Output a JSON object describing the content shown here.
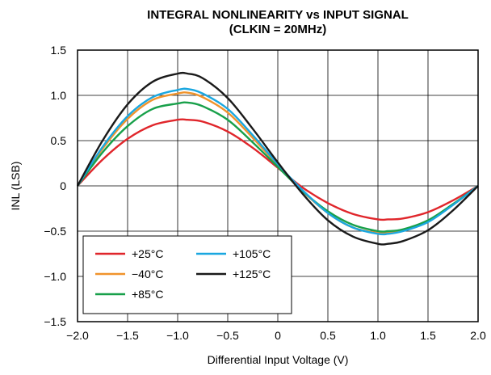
{
  "chart_data": {
    "type": "line",
    "title": "INTEGRAL NONLINEARITY vs INPUT SIGNAL",
    "subtitle": "(CLKIN = 20MHz)",
    "xlabel": "Differential Input Voltage (V)",
    "ylabel": "INL (LSB)",
    "xlim": [
      -2.0,
      2.0
    ],
    "ylim": [
      -1.5,
      1.5
    ],
    "x_ticks": [
      -2.0,
      -1.5,
      -1.0,
      -0.5,
      0,
      0.5,
      1.0,
      1.5,
      2.0
    ],
    "x_tick_labels": [
      "−2.0",
      "−1.5",
      "−1.0",
      "−0.5",
      "0",
      "0.5",
      "1.0",
      "1.5",
      "2.0"
    ],
    "y_ticks": [
      -1.5,
      -1.0,
      -0.5,
      0,
      0.5,
      1.0,
      1.5
    ],
    "y_tick_labels": [
      "−1.5",
      "−1.0",
      "−0.5",
      "0",
      "0.5",
      "1.0",
      "1.5"
    ],
    "grid": true,
    "legend_position": "bottom-left",
    "x": [
      -2.0,
      -1.75,
      -1.5,
      -1.25,
      -1.0,
      -0.9,
      -0.75,
      -0.5,
      -0.25,
      0.0,
      0.25,
      0.5,
      0.75,
      1.0,
      1.1,
      1.25,
      1.5,
      1.75,
      2.0
    ],
    "series": [
      {
        "name": "+25°C",
        "color": "#e0262b",
        "values": [
          0.0,
          0.29,
          0.52,
          0.67,
          0.73,
          0.73,
          0.71,
          0.6,
          0.42,
          0.2,
          -0.02,
          -0.19,
          -0.31,
          -0.37,
          -0.37,
          -0.36,
          -0.29,
          -0.16,
          0.0
        ]
      },
      {
        "name": "−40°C",
        "color": "#f0932b",
        "values": [
          0.0,
          0.41,
          0.74,
          0.95,
          1.02,
          1.03,
          0.98,
          0.81,
          0.53,
          0.23,
          -0.06,
          -0.3,
          -0.46,
          -0.52,
          -0.52,
          -0.49,
          -0.39,
          -0.21,
          0.0
        ]
      },
      {
        "name": "+85°C",
        "color": "#18a04a",
        "values": [
          0.0,
          0.37,
          0.66,
          0.85,
          0.91,
          0.92,
          0.88,
          0.73,
          0.48,
          0.21,
          -0.06,
          -0.28,
          -0.43,
          -0.5,
          -0.5,
          -0.48,
          -0.38,
          -0.2,
          0.0
        ]
      },
      {
        "name": "+105°C",
        "color": "#1aa7e0",
        "values": [
          0.0,
          0.43,
          0.77,
          0.98,
          1.06,
          1.07,
          1.02,
          0.85,
          0.56,
          0.24,
          -0.05,
          -0.3,
          -0.46,
          -0.53,
          -0.53,
          -0.5,
          -0.4,
          -0.21,
          0.0
        ]
      },
      {
        "name": "+125°C",
        "color": "#1a1a1a",
        "values": [
          0.0,
          0.5,
          0.9,
          1.15,
          1.24,
          1.24,
          1.19,
          0.97,
          0.63,
          0.26,
          -0.09,
          -0.38,
          -0.56,
          -0.64,
          -0.64,
          -0.61,
          -0.49,
          -0.27,
          0.0
        ]
      }
    ]
  }
}
